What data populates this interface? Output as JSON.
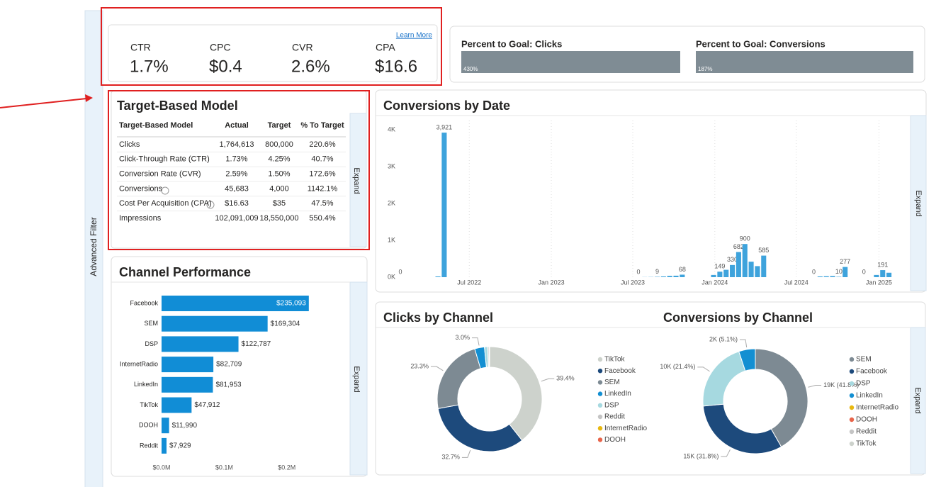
{
  "sidebar": {
    "label": "Advanced Filter"
  },
  "kpis": {
    "learn_more": "Learn More",
    "items": [
      {
        "label": "CTR",
        "value": "1.7%"
      },
      {
        "label": "CPC",
        "value": "$0.4"
      },
      {
        "label": "CVR",
        "value": "2.6%"
      },
      {
        "label": "CPA",
        "value": "$16.6"
      }
    ]
  },
  "goals": [
    {
      "label": "Percent to Goal: Clicks",
      "value": "430%"
    },
    {
      "label": "Percent to Goal: Conversions",
      "value": "187%"
    }
  ],
  "target_model": {
    "title": "Target-Based Model",
    "columns": [
      "Target-Based Model",
      "Actual",
      "Target",
      "% To Target"
    ],
    "rows": [
      [
        "Clicks",
        "1,764,613",
        "800,000",
        "220.6%"
      ],
      [
        "Click-Through Rate (CTR)",
        "1.73%",
        "4.25%",
        "40.7%"
      ],
      [
        "Conversion Rate (CVR)",
        "2.59%",
        "1.50%",
        "172.6%"
      ],
      [
        "Conversions",
        "45,683",
        "4,000",
        "1142.1%"
      ],
      [
        "Cost Per Acquisition (CPA)",
        "$16.63",
        "$35",
        "47.5%"
      ],
      [
        "Impressions",
        "102,091,009",
        "18,550,000",
        "550.4%"
      ]
    ]
  },
  "expand_labels": [
    "Expand",
    "Expand",
    "Expand",
    "Expand"
  ],
  "chart_data": [
    {
      "type": "bar",
      "orientation": "horizontal",
      "title": "Channel Performance",
      "categories": [
        "Facebook",
        "SEM",
        "DSP",
        "InternetRadio",
        "LinkedIn",
        "TikTok",
        "DOOH",
        "Reddit"
      ],
      "values": [
        235093,
        169304,
        122787,
        82709,
        81953,
        47912,
        11990,
        7929
      ],
      "value_labels": [
        "$235,093",
        "$169,304",
        "$122,787",
        "$82,709",
        "$81,953",
        "$47,912",
        "$11,990",
        "$7,929"
      ],
      "color": "#118dd6",
      "xlim": [
        0,
        300000
      ],
      "xticks": [
        {
          "value": 0,
          "label": "$0.0M"
        },
        {
          "value": 100000,
          "label": "$0.1M"
        },
        {
          "value": 200000,
          "label": "$0.2M"
        }
      ]
    },
    {
      "type": "bar",
      "orientation": "vertical",
      "title": "Conversions by Date",
      "categories": [
        null,
        null,
        null,
        null,
        null,
        null,
        null,
        null,
        null,
        null,
        null,
        null,
        null,
        null,
        null,
        null,
        null,
        null,
        null,
        null,
        null,
        null,
        null,
        null,
        null,
        null,
        null,
        null,
        null,
        null,
        null,
        null,
        null,
        null,
        null,
        null,
        null,
        null,
        null,
        null,
        null,
        null,
        null,
        null,
        null,
        null,
        null,
        null,
        null,
        null,
        null,
        null,
        null,
        null,
        null,
        null,
        null,
        null,
        null,
        null,
        null,
        null,
        null,
        null,
        null,
        null,
        null,
        null,
        null,
        null,
        null,
        null,
        null,
        null,
        null,
        null,
        null,
        null,
        null
      ],
      "values": [
        0,
        0,
        0,
        0,
        0,
        0,
        20,
        3921,
        0,
        0,
        0,
        0,
        0,
        0,
        0,
        0,
        0,
        0,
        0,
        0,
        0,
        0,
        0,
        0,
        0,
        0,
        0,
        0,
        0,
        0,
        0,
        0,
        0,
        0,
        0,
        0,
        0,
        0,
        0,
        3,
        5,
        9,
        20,
        35,
        40,
        68,
        0,
        0,
        0,
        0,
        60,
        149,
        200,
        330,
        682,
        900,
        420,
        300,
        585,
        0,
        0,
        0,
        0,
        0,
        0,
        0,
        0,
        20,
        25,
        30,
        10,
        277,
        0,
        0,
        0,
        0,
        60,
        191,
        120
      ],
      "value_labels": [
        "0",
        null,
        null,
        null,
        null,
        null,
        null,
        "3,921",
        null,
        null,
        null,
        null,
        null,
        null,
        null,
        null,
        null,
        null,
        null,
        null,
        null,
        null,
        null,
        null,
        null,
        null,
        null,
        null,
        null,
        null,
        null,
        null,
        null,
        null,
        null,
        null,
        null,
        null,
        "0",
        null,
        null,
        "9",
        null,
        null,
        null,
        "68",
        null,
        null,
        null,
        null,
        null,
        "149",
        null,
        "330",
        "682",
        "900",
        null,
        null,
        "585",
        null,
        null,
        null,
        null,
        null,
        null,
        null,
        "0",
        null,
        null,
        null,
        "10",
        "277",
        null,
        null,
        "0",
        null,
        null,
        "191",
        null
      ],
      "color": "#3ea3dc",
      "xlim": [
        -0.5,
        78.5
      ],
      "xticks": [
        {
          "value": 11,
          "label": "Jul 2022"
        },
        {
          "value": 24.1,
          "label": "Jan 2023"
        },
        {
          "value": 37.1,
          "label": "Jul 2023"
        },
        {
          "value": 50.2,
          "label": "Jan 2024"
        },
        {
          "value": 63.2,
          "label": "Jul 2024"
        },
        {
          "value": 76.4,
          "label": "Jan 2025"
        }
      ],
      "ylim": [
        0,
        4000
      ],
      "yticks": [
        {
          "value": 0,
          "label": "0K"
        },
        {
          "value": 1000,
          "label": "1K"
        },
        {
          "value": 2000,
          "label": "2K"
        },
        {
          "value": 3000,
          "label": "3K"
        },
        {
          "value": 4000,
          "label": "4K"
        }
      ],
      "grid": true
    },
    {
      "type": "donut",
      "title": "Clicks by Channel",
      "legend": "right",
      "categories": [
        "TikTok",
        "Facebook",
        "SEM",
        "LinkedIn",
        "DSP",
        "Reddit",
        "InternetRadio",
        "DOOH"
      ],
      "values": [
        39.4,
        32.7,
        23.3,
        3.0,
        1.0,
        0.4,
        0.1,
        0.1
      ],
      "value_labels": [
        "39.4%",
        "32.7%",
        "23.3%",
        "3.0%",
        null,
        null,
        null,
        null
      ],
      "colors": [
        "#cdd2cc",
        "#1d4a7c",
        "#7d8a93",
        "#138fd2",
        "#a6d9e0",
        "#c4c4c4",
        "#e8b810",
        "#e8644a"
      ]
    },
    {
      "type": "donut",
      "title": "Conversions by Channel",
      "legend": "right",
      "categories": [
        "SEM",
        "Facebook",
        "DSP",
        "LinkedIn",
        "InternetRadio",
        "DOOH",
        "Reddit",
        "TikTok"
      ],
      "values": [
        19096,
        14527,
        9776,
        2330,
        0,
        0,
        0,
        0
      ],
      "value_labels": [
        "19K (41.8%)",
        "15K (31.8%)",
        "10K (21.4%)",
        "2K (5.1%)",
        null,
        null,
        null,
        null
      ],
      "colors": [
        "#7d8a93",
        "#1d4a7c",
        "#a6d9e0",
        "#138fd2",
        "#e8b810",
        "#e8644a",
        "#c4c4c4",
        "#cdd2cc"
      ]
    }
  ]
}
